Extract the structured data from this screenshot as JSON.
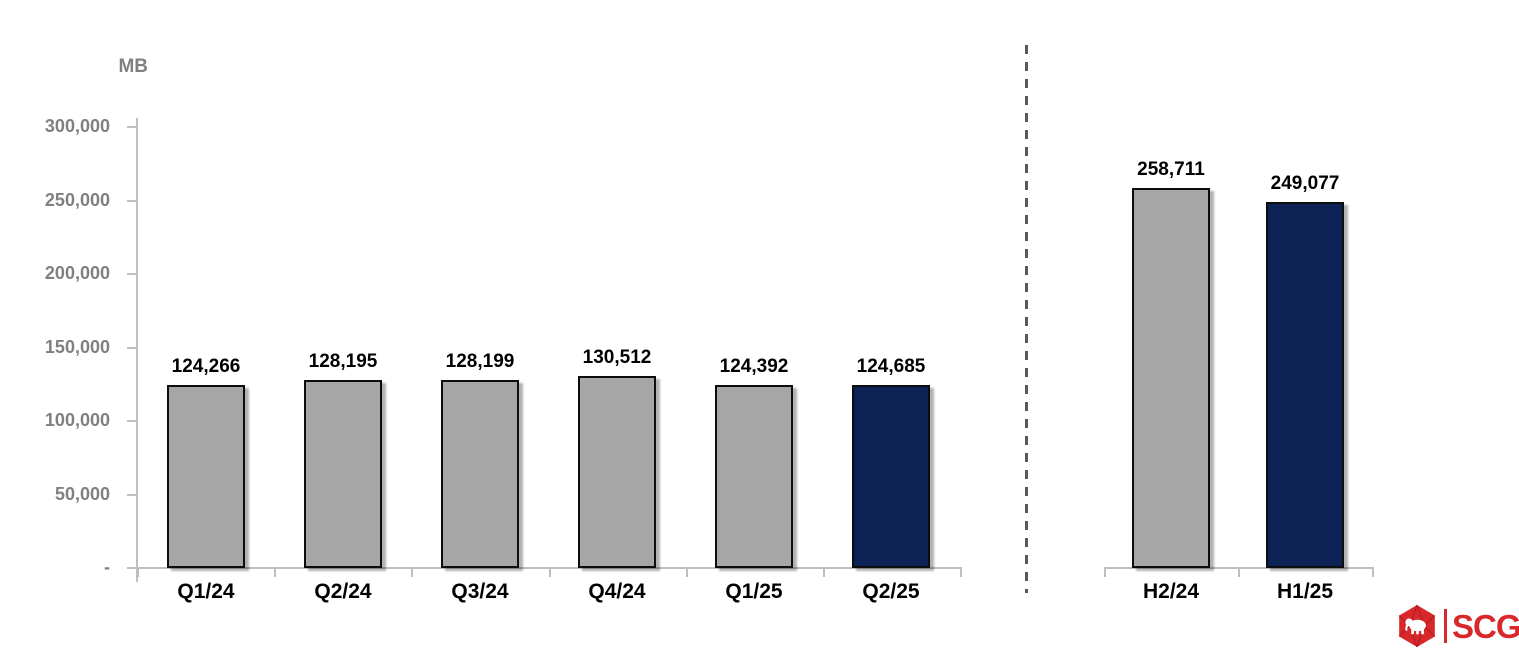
{
  "colors": {
    "bar_gray": "#A6A6A6",
    "bar_navy": "#0D2254",
    "axis": "#BFBFBF",
    "tick_label": "#808080",
    "value_label": "#000000",
    "divider": "#595959",
    "logo_red": "#D9282C"
  },
  "chart_data": [
    {
      "type": "bar",
      "title": "",
      "ylabel": "MB",
      "categories": [
        "Q1/24",
        "Q2/24",
        "Q3/24",
        "Q4/24",
        "Q1/25",
        "Q2/25"
      ],
      "values": [
        124266,
        128195,
        128199,
        130512,
        124392,
        124685
      ],
      "value_labels": [
        "124,266",
        "128,195",
        "128,199",
        "130,512",
        "124,392",
        "124,685"
      ],
      "bar_colors": [
        "gray",
        "gray",
        "gray",
        "gray",
        "gray",
        "navy"
      ],
      "ylim": [
        0,
        300000
      ],
      "ytick_interval": 50000,
      "ytick_labels": [
        "300,000",
        "250,000",
        "200,000",
        "150,000",
        "100,000",
        "50,000",
        "-"
      ],
      "grid": false,
      "legend": "none"
    },
    {
      "type": "bar",
      "title": "",
      "categories": [
        "H2/24",
        "H1/25"
      ],
      "values": [
        258711,
        249077
      ],
      "value_labels": [
        "258,711",
        "249,077"
      ],
      "bar_colors": [
        "gray",
        "navy"
      ],
      "ylim": [
        0,
        300000
      ],
      "grid": false,
      "legend": "none"
    }
  ],
  "logo": {
    "text": "SCG"
  }
}
